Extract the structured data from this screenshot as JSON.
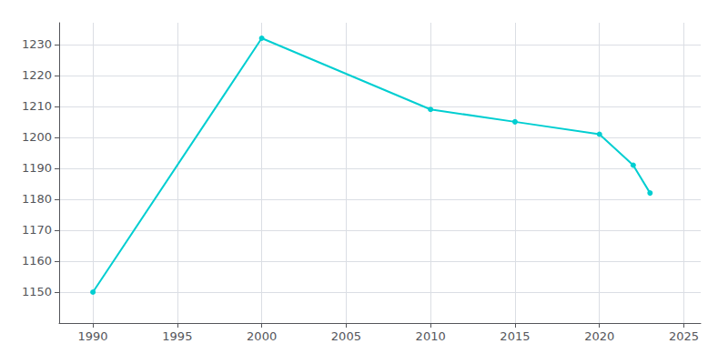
{
  "chart_data": {
    "type": "line",
    "x": [
      1990,
      2000,
      2010,
      2015,
      2020,
      2022,
      2023
    ],
    "values": [
      1150,
      1232,
      1209,
      1205,
      1201,
      1191,
      1182
    ],
    "color": "#00CED1",
    "marker": "circle",
    "xlim": [
      1988,
      2026
    ],
    "ylim": [
      1140,
      1237
    ],
    "xticks": [
      1990,
      1995,
      2000,
      2005,
      2010,
      2015,
      2020,
      2025
    ],
    "yticks": [
      1150,
      1160,
      1170,
      1180,
      1190,
      1200,
      1210,
      1220,
      1230
    ],
    "grid": true
  }
}
